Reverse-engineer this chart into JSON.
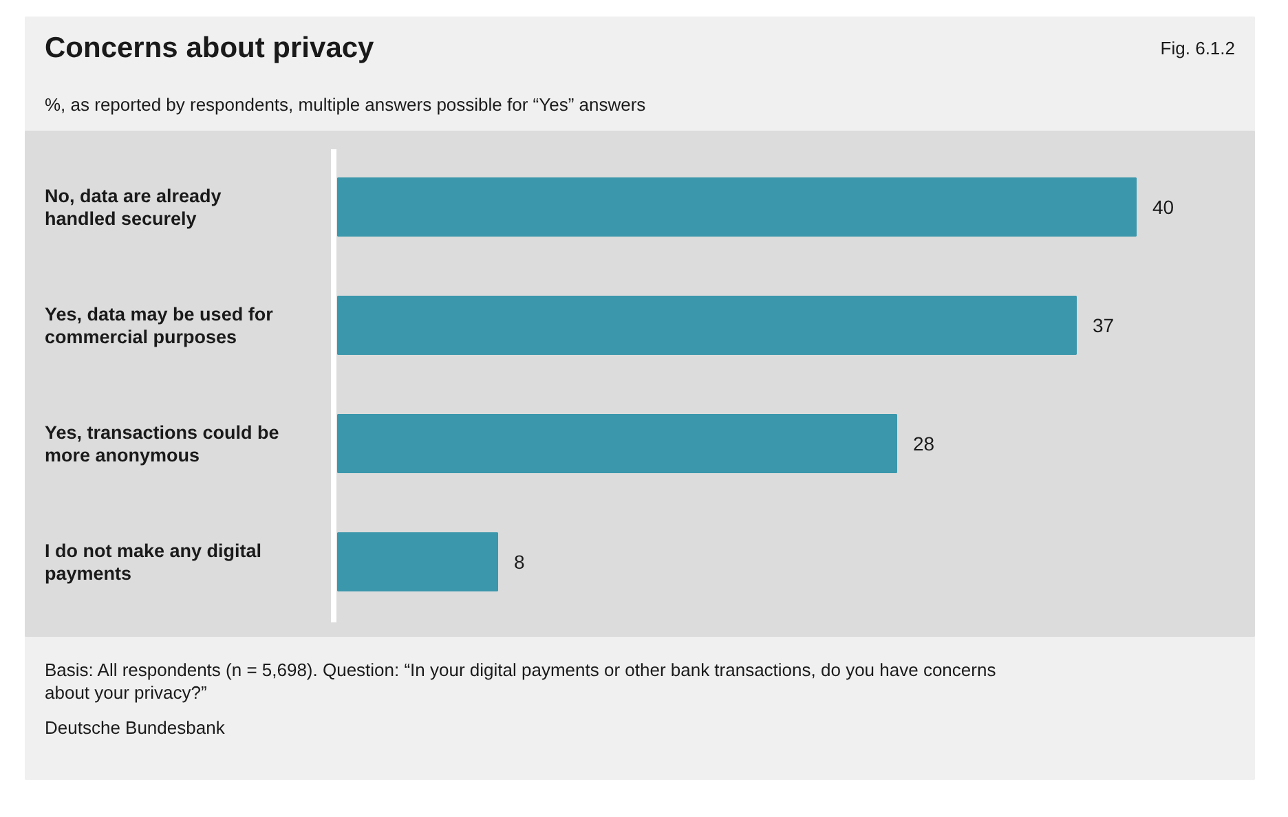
{
  "chart_data": {
    "type": "bar",
    "orientation": "horizontal",
    "title": "Concerns about privacy",
    "subtitle": "%, as reported by respondents, multiple answers possible for “Yes” answers",
    "categories": [
      "No, data are already handled securely",
      "Yes, data may be used for commercial purposes",
      "Yes, transactions could be more anonymous",
      "I do not make any digital payments"
    ],
    "values": [
      40,
      37,
      28,
      8
    ],
    "color": "#3b97ab",
    "data_labels": true,
    "grid": false,
    "annotations": [
      "Fig. 6.1.2",
      "Basis: All respondents (n = 5,698). Question: “In your digital payments or other bank transactions, do you have concerns about your privacy?”",
      "Deutsche Bundesbank"
    ]
  }
}
